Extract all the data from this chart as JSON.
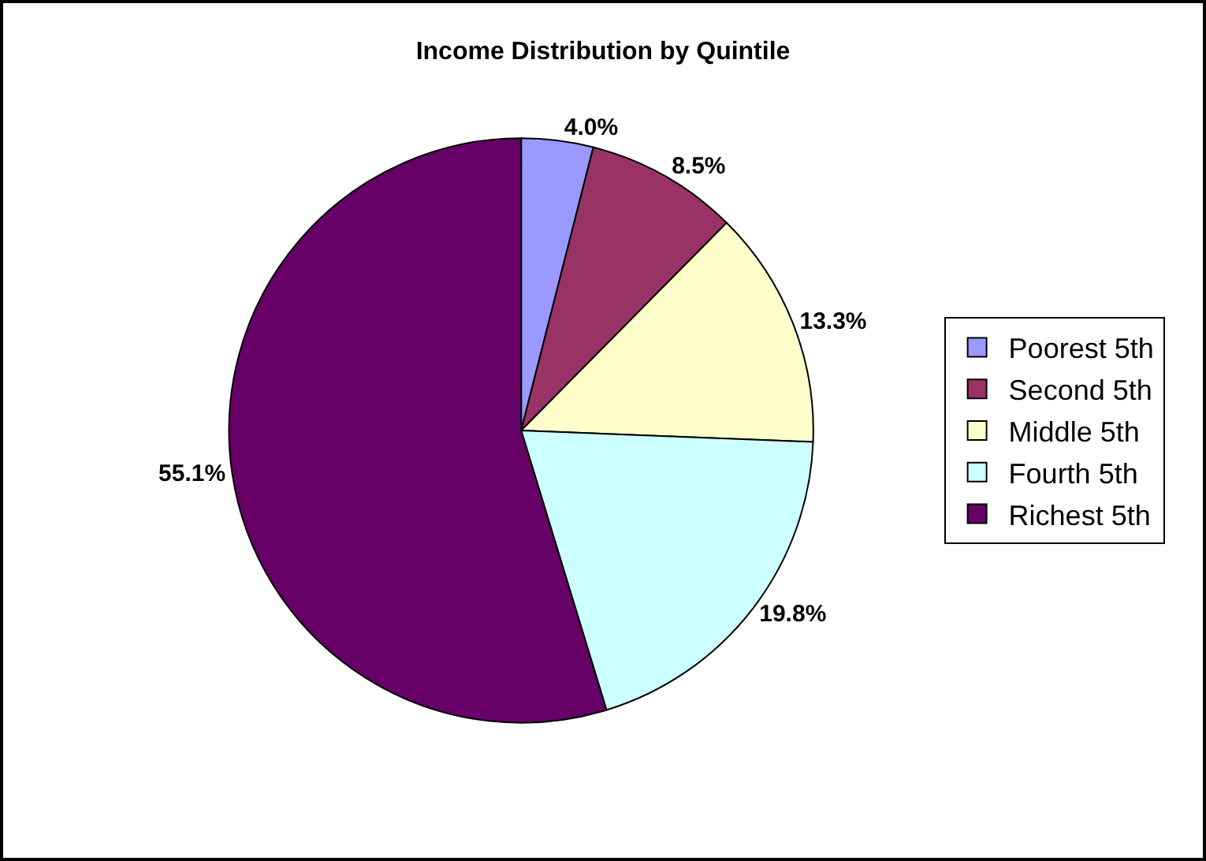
{
  "chart_data": {
    "type": "pie",
    "title": "Income Distribution by Quintile",
    "categories": [
      "Poorest 5th",
      "Second 5th",
      "Middle 5th",
      "Fourth 5th",
      "Richest 5th"
    ],
    "values": [
      4.0,
      8.5,
      13.3,
      19.8,
      55.1
    ],
    "value_labels": [
      "4.0%",
      "8.5%",
      "13.3%",
      "19.8%",
      "55.1%"
    ],
    "colors": [
      "#9999ff",
      "#993366",
      "#ffffcc",
      "#ccffff",
      "#660066"
    ],
    "legend": "right"
  }
}
